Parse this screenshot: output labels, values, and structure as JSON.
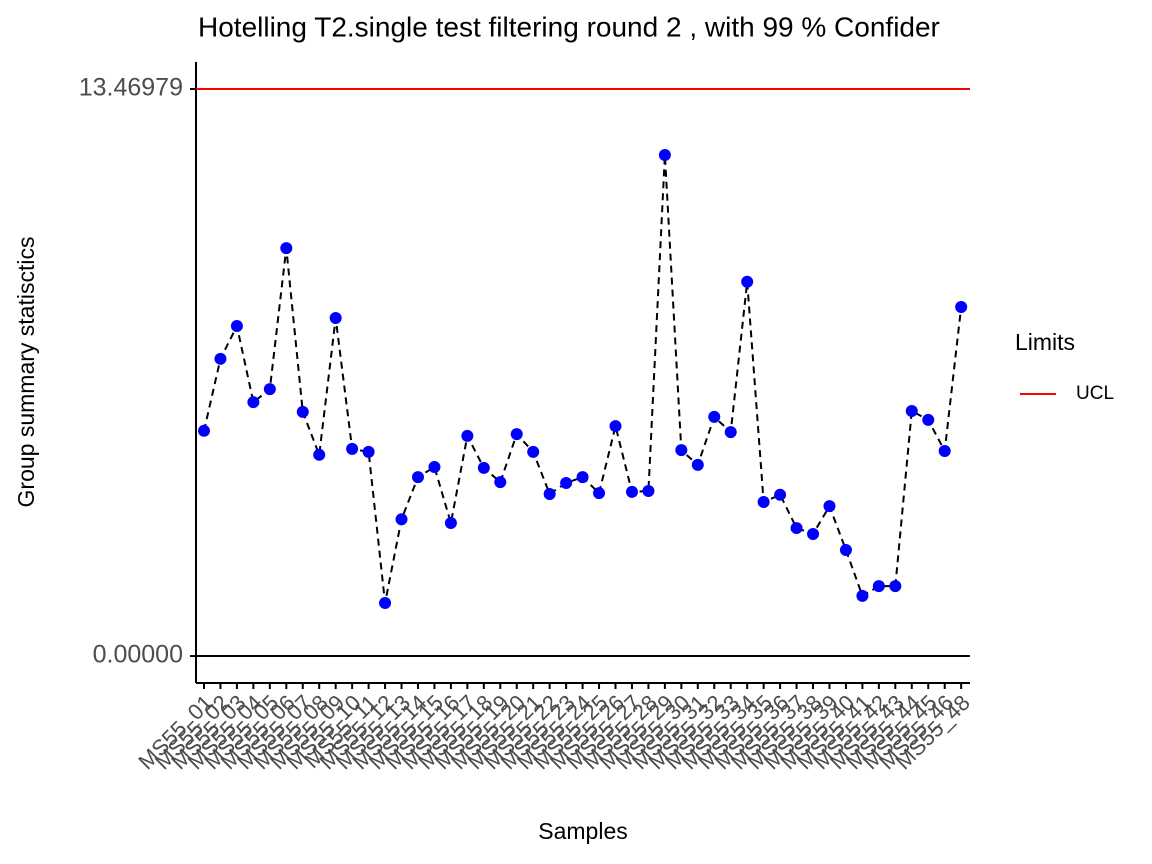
{
  "chart_data": {
    "type": "line",
    "title": "Hotelling  T2.single  test filtering round  2 , with  99 % Confider",
    "x_label": "Samples",
    "y_label": "Group summary statisctics",
    "categories": [
      "MS55_01",
      "MS55_02",
      "MS55_03",
      "MS55_04",
      "MS55_05",
      "MS55_06",
      "MS55_07",
      "MS55_08",
      "MS55_09",
      "MS55_10",
      "MS55_11",
      "MS55_12",
      "MS55_13",
      "MS55_14",
      "MS55_15",
      "MS55_16",
      "MS55_17",
      "MS55_18",
      "MS55_19",
      "MS55_20",
      "MS55_21",
      "MS55_22",
      "MS55_23",
      "MS55_24",
      "MS55_25",
      "MS55_26",
      "MS55_27",
      "MS55_28",
      "MS55_29",
      "MS55_30",
      "MS55_31",
      "MS55_32",
      "MS55_33",
      "MS55_34",
      "MS55_35",
      "MS55_36",
      "MS55_37",
      "MS55_38",
      "MS55_39",
      "MS55_40",
      "MS55_41",
      "MS55_42",
      "MS55_43",
      "MS55_44",
      "MS55_45",
      "MS55_46",
      "MS55_48"
    ],
    "values": [
      5.35,
      7.06,
      7.84,
      6.03,
      6.34,
      9.69,
      5.8,
      4.78,
      8.03,
      4.92,
      4.85,
      1.26,
      3.25,
      4.25,
      4.49,
      3.16,
      5.23,
      4.47,
      4.13,
      5.27,
      4.85,
      3.85,
      4.11,
      4.25,
      3.87,
      5.46,
      3.9,
      3.92,
      11.9,
      4.89,
      4.54,
      5.68,
      5.32,
      8.89,
      3.66,
      3.83,
      3.04,
      2.9,
      3.56,
      2.52,
      1.43,
      1.66,
      1.66,
      5.82,
      5.61,
      4.87,
      8.29
    ],
    "color": "#0000ff",
    "line_color": "#000000",
    "ucl": 13.46979,
    "ucl_color": "#ff0000",
    "legend_title": "Limits",
    "legend_label": "UCL",
    "ylim": [
      -0.64,
      14.11
    ],
    "yticks": [
      {
        "value": 0,
        "label": "0.00000"
      },
      13.46979
    ]
  }
}
